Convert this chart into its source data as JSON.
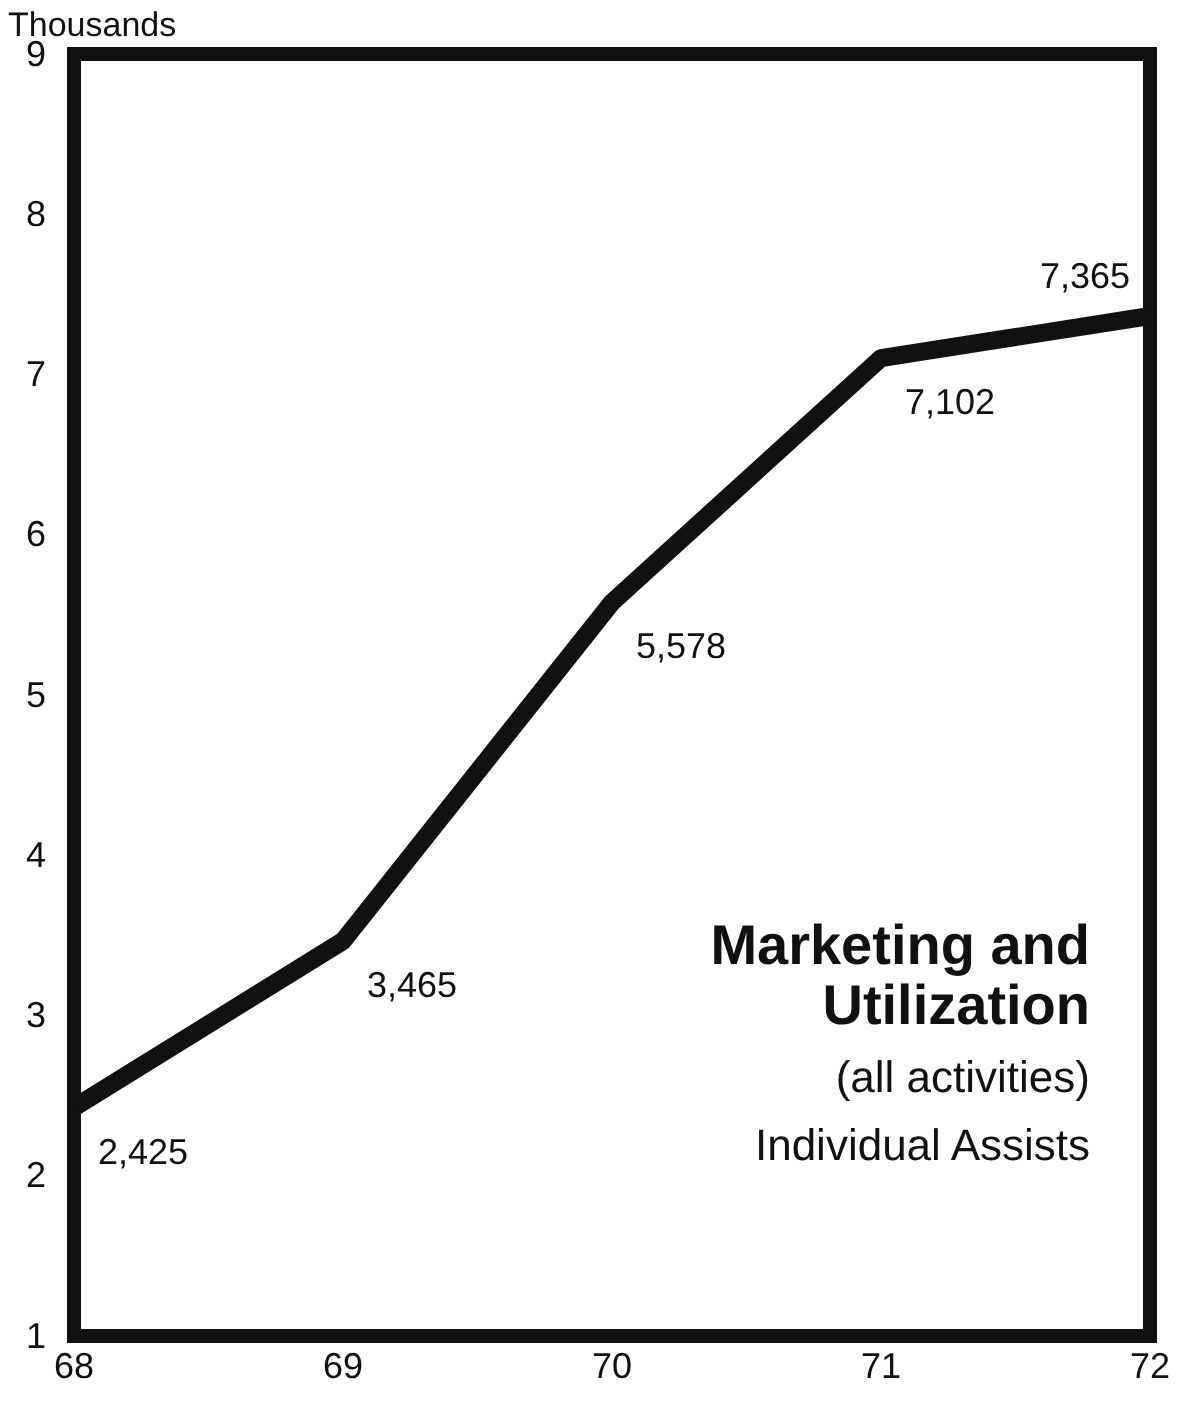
{
  "chart_data": {
    "type": "line",
    "title": "Marketing and Utilization",
    "subtitle": "(all activities)",
    "ylabel": "Thousands",
    "annotations": [
      "Individual Assists",
      {
        "text": "2,425",
        "x": 68,
        "y": 2.425
      },
      {
        "text": "3,465",
        "x": 69,
        "y": 3.465
      },
      {
        "text": "5,578",
        "x": 70,
        "y": 5.578
      },
      {
        "text": "7,102",
        "x": 71,
        "y": 7.102
      },
      {
        "text": "7,365",
        "x": 72,
        "y": 7.365
      }
    ],
    "x": [
      68,
      69,
      70,
      71,
      72
    ],
    "series": [
      {
        "color": "#111111",
        "values": [
          2.425,
          3.465,
          5.578,
          7.102,
          7.365
        ]
      }
    ],
    "xlim": [
      68,
      72
    ],
    "xticks": [
      68,
      69,
      70,
      71,
      72
    ],
    "ylim": [
      1,
      9
    ],
    "yticks": [
      1,
      2,
      3,
      4,
      5,
      6,
      7,
      8,
      9
    ],
    "grid": false,
    "marker": "none",
    "line_style": "solid"
  }
}
